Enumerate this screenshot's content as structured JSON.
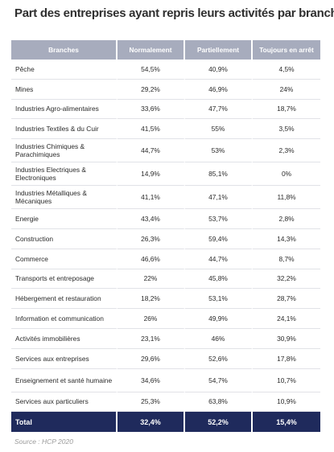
{
  "title": "Part des entreprises ayant repris leurs activités par branche",
  "headers": [
    "Branches",
    "Normalement",
    "Partiellement",
    "Toujours en arrêt"
  ],
  "rows": [
    [
      "Pêche",
      "54,5%",
      "40,9%",
      "4,5%"
    ],
    [
      "Mines",
      "29,2%",
      "46,9%",
      "24%"
    ],
    [
      "Industries Agro-alimentaires",
      "33,6%",
      "47,7%",
      "18,7%"
    ],
    [
      "Industries Textiles & du Cuir",
      "41,5%",
      "55%",
      "3,5%"
    ],
    [
      "Industries Chimiques & Parachimiques",
      "44,7%",
      "53%",
      "2,3%"
    ],
    [
      "Industries Electriques & Electroniques",
      "14,9%",
      "85,1%",
      "0%"
    ],
    [
      "Industries Métalliques & Mécaniques",
      "41,1%",
      "47,1%",
      "11,8%"
    ],
    [
      "Energie",
      "43,4%",
      "53,7%",
      "2,8%"
    ],
    [
      "Construction",
      "26,3%",
      "59,4%",
      "14,3%"
    ],
    [
      "Commerce",
      "46,6%",
      "44,7%",
      "8,7%"
    ],
    [
      "Transports et entreposage",
      "22%",
      "45,8%",
      "32,2%"
    ],
    [
      "Hébergement et restauration",
      "18,2%",
      "53,1%",
      "28,7%"
    ],
    [
      "Information et communication",
      "26%",
      "49,9%",
      "24,1%"
    ],
    [
      "Activités immobilières",
      "23,1%",
      "46%",
      "30,9%"
    ],
    [
      "Services aux entreprises",
      "29,6%",
      "52,6%",
      "17,8%"
    ],
    [
      "Enseignement et santé humaine",
      "34,6%",
      "54,7%",
      "10,7%"
    ],
    [
      "Services aux particuliers",
      "25,3%",
      "63,8%",
      "10,9%"
    ]
  ],
  "total": [
    "Total",
    "32,4%",
    "52,2%",
    "15,4%"
  ],
  "source": "Source : HCP 2020",
  "colors": {
    "header_bg": "#a7acbd",
    "total_bg": "#1f2a5c"
  }
}
